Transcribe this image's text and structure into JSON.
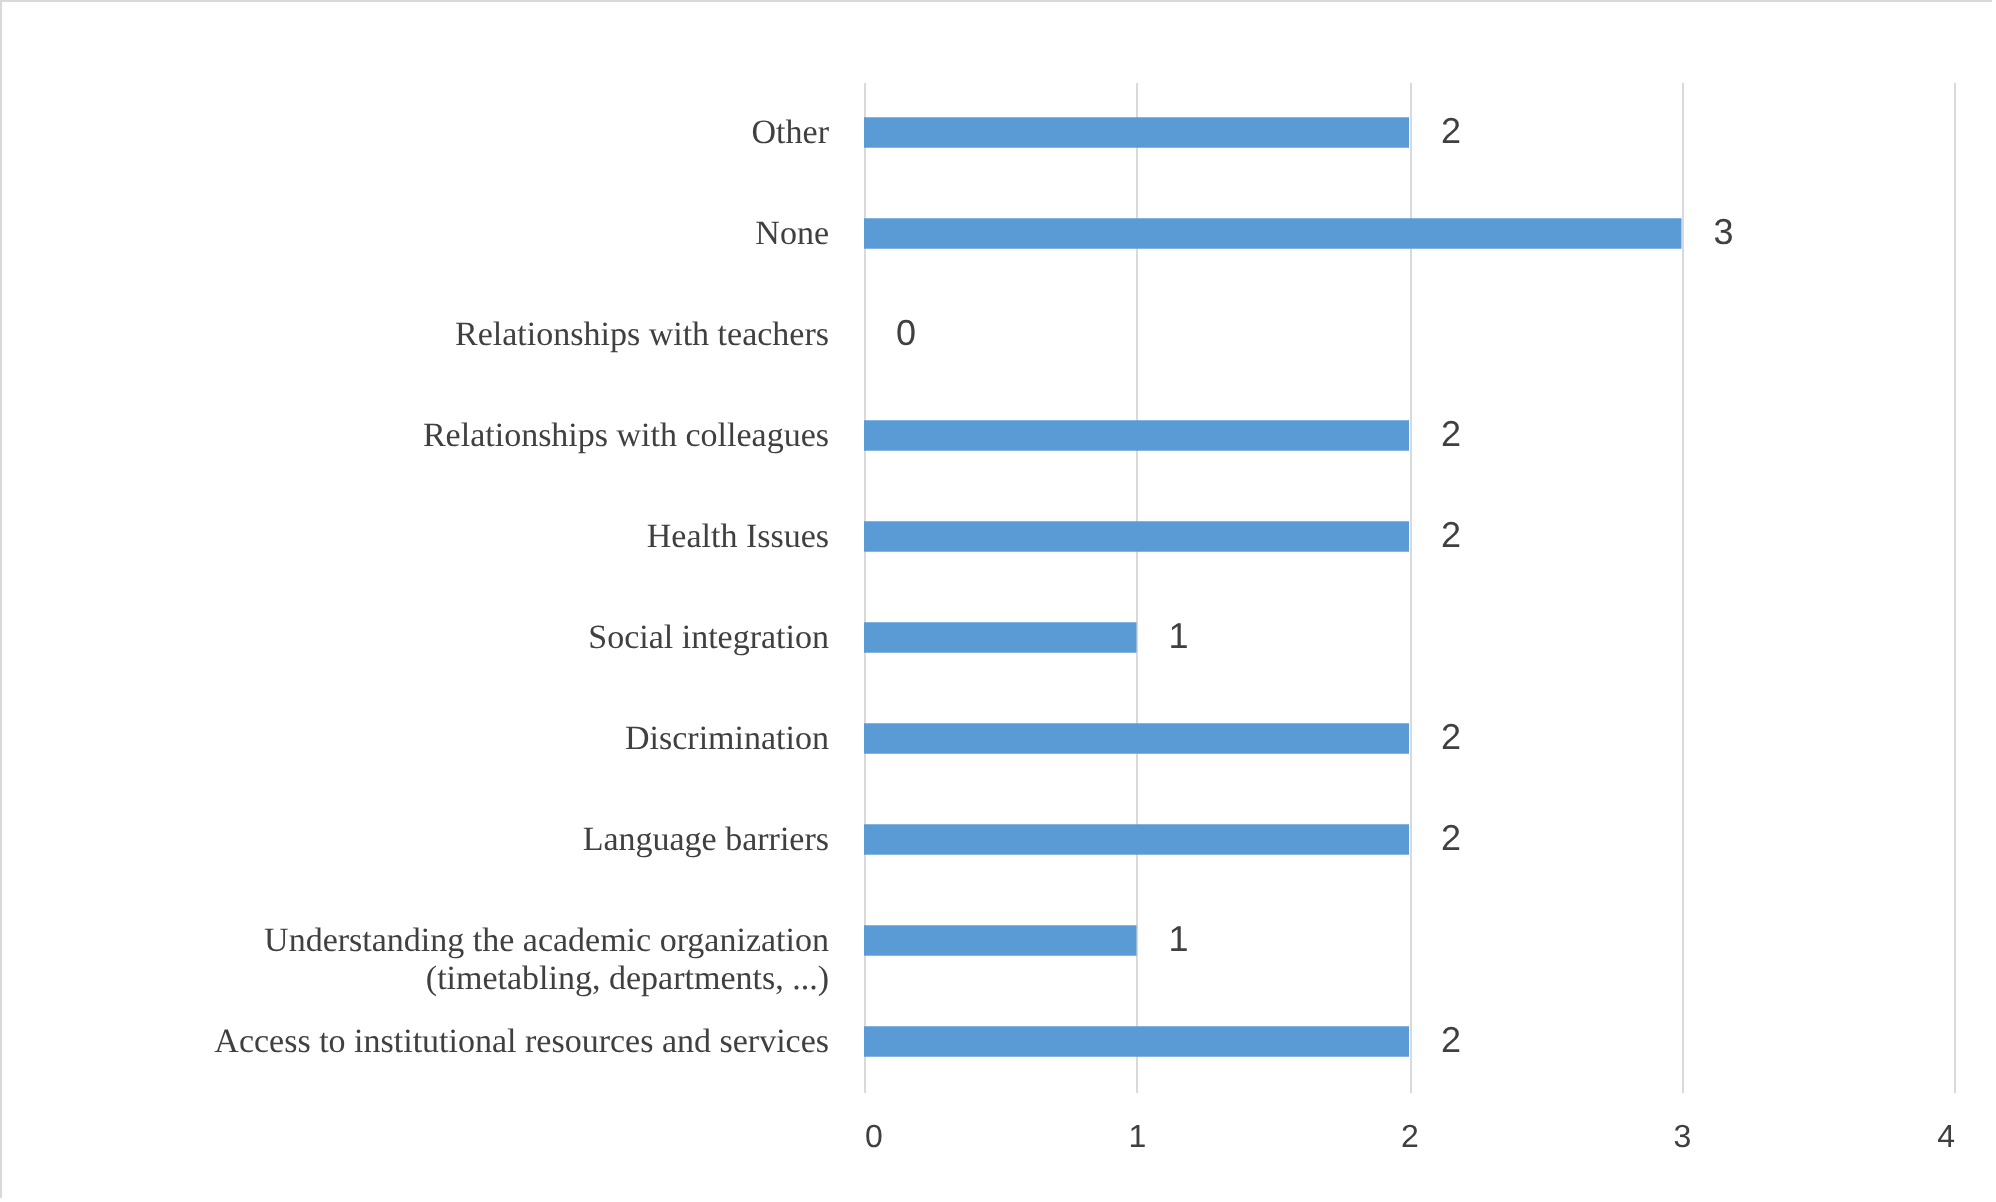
{
  "chart_data": {
    "type": "bar",
    "orientation": "horizontal",
    "categories": [
      "Other",
      "None",
      "Relationships with teachers",
      "Relationships with colleagues",
      "Health Issues",
      "Social integration",
      "Discrimination",
      "Language barriers",
      "Understanding the academic organization\n(timetabling, departments, ...)",
      "Access to institutional resources and services"
    ],
    "values": [
      2,
      3,
      0,
      2,
      2,
      1,
      2,
      2,
      1,
      2
    ],
    "color": "#5b9bd5",
    "xlim": [
      0,
      4
    ],
    "xticks": [
      0,
      1,
      2,
      3,
      4
    ],
    "grid": "x",
    "data_labels": true
  }
}
